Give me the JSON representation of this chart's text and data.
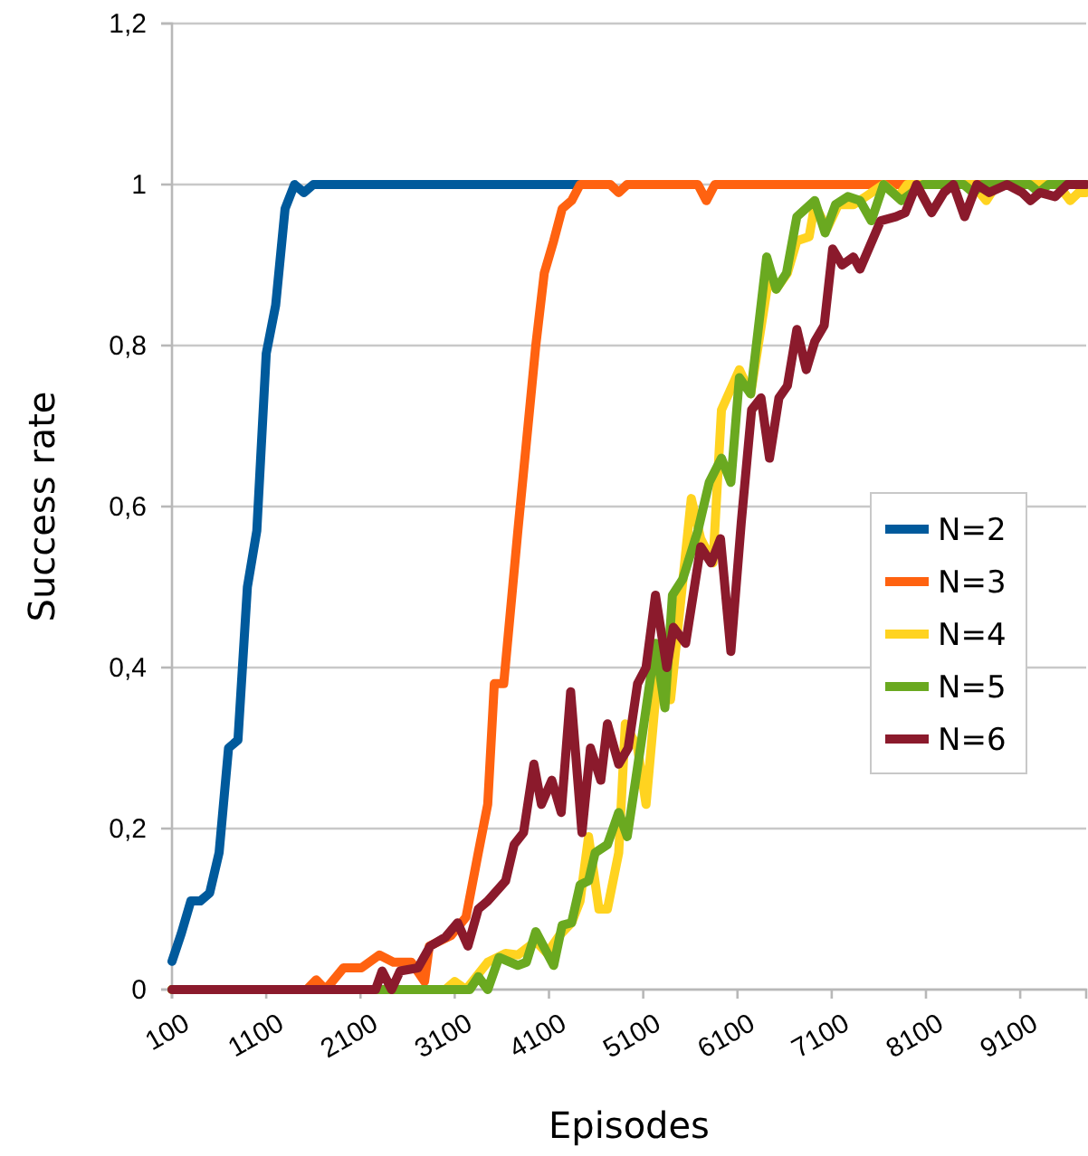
{
  "chart_data": {
    "type": "line",
    "xlabel": "Episodes",
    "ylabel": "Success rate",
    "xlim": [
      100,
      9800
    ],
    "xticks": [
      100,
      1100,
      2100,
      3100,
      4100,
      5100,
      6100,
      7100,
      8100,
      9100
    ],
    "ylim": [
      0,
      1.2
    ],
    "yticks": [
      0,
      {
        "value": 0.2,
        "label": "0,2"
      },
      {
        "value": 0.4,
        "label": "0,4"
      },
      {
        "value": 0.6,
        "label": "0,6"
      },
      {
        "value": 0.8,
        "label": "0,8"
      },
      1,
      {
        "value": 1.2,
        "label": "1,2"
      }
    ],
    "grid": "y",
    "legend": "right",
    "marker": "none",
    "line_style": "solid",
    "series": [
      {
        "name": "N=2",
        "color": "#005a9c",
        "x": [
          100,
          200,
          300,
          400,
          500,
          600,
          700,
          800,
          900,
          1000,
          1100,
          1200,
          1300,
          1400,
          1500,
          1600,
          4430
        ],
        "values": [
          0.035,
          0.07,
          0.11,
          0.11,
          0.12,
          0.17,
          0.3,
          0.31,
          0.5,
          0.57,
          0.79,
          0.85,
          0.97,
          1,
          0.99,
          1,
          1
        ]
      },
      {
        "name": "N=3",
        "color": "#ff6210",
        "x": [
          100,
          1530,
          1630,
          1730,
          1920,
          2110,
          2300,
          2450,
          2640,
          2780,
          2830,
          3060,
          3220,
          3350,
          3450,
          3520,
          3620,
          3770,
          3960,
          4050,
          4150,
          4240,
          4340,
          4430,
          4750,
          4840,
          4930,
          5680,
          5770,
          5860,
          9800
        ],
        "values": [
          0,
          0,
          0.012,
          0,
          0.027,
          0.027,
          0.043,
          0.034,
          0.034,
          0.01,
          0.054,
          0.067,
          0.09,
          0.17,
          0.23,
          0.38,
          0.38,
          0.57,
          0.8,
          0.89,
          0.93,
          0.97,
          0.98,
          1,
          1,
          0.99,
          1,
          1,
          0.98,
          1,
          1
        ]
      },
      {
        "name": "N=4",
        "color": "#ffd320",
        "x": [
          100,
          3000,
          3100,
          3220,
          3450,
          3640,
          3770,
          3960,
          4080,
          4210,
          4340,
          4430,
          4520,
          4630,
          4720,
          4840,
          4910,
          5040,
          5130,
          5260,
          5390,
          5610,
          5710,
          5840,
          5930,
          6120,
          6240,
          6440,
          6510,
          6630,
          6730,
          6860,
          6920,
          7050,
          7170,
          7330,
          7460,
          7650,
          7810,
          7900,
          8600,
          8740,
          8850,
          9500,
          9630,
          9720,
          9800
        ],
        "values": [
          0,
          0,
          0.01,
          0,
          0.034,
          0.045,
          0.043,
          0.06,
          0.045,
          0.067,
          0.083,
          0.11,
          0.19,
          0.1,
          0.1,
          0.17,
          0.33,
          0.3,
          0.23,
          0.4,
          0.36,
          0.61,
          0.56,
          0.53,
          0.72,
          0.77,
          0.74,
          0.89,
          0.87,
          0.89,
          0.93,
          0.935,
          0.975,
          0.945,
          0.975,
          0.975,
          0.985,
          1,
          0.985,
          1,
          1,
          0.98,
          1,
          1,
          0.98,
          0.99,
          0.99
        ]
      },
      {
        "name": "N=5",
        "color": "#6aa920",
        "x": [
          100,
          3260,
          3350,
          3450,
          3570,
          3770,
          3860,
          3960,
          4150,
          4240,
          4340,
          4430,
          4520,
          4590,
          4720,
          4840,
          4930,
          5070,
          5230,
          5330,
          5410,
          5520,
          5680,
          5800,
          5930,
          6030,
          6120,
          6240,
          6410,
          6510,
          6620,
          6730,
          6920,
          7030,
          7140,
          7270,
          7400,
          7520,
          7650,
          7840,
          8070,
          8500,
          8600,
          8700,
          9200,
          9300,
          9400,
          9800
        ],
        "values": [
          0,
          0,
          0.016,
          0,
          0.04,
          0.03,
          0.034,
          0.072,
          0.03,
          0.08,
          0.083,
          0.13,
          0.135,
          0.17,
          0.18,
          0.22,
          0.19,
          0.3,
          0.43,
          0.35,
          0.49,
          0.51,
          0.57,
          0.63,
          0.66,
          0.63,
          0.76,
          0.74,
          0.91,
          0.87,
          0.89,
          0.96,
          0.98,
          0.94,
          0.975,
          0.985,
          0.98,
          0.955,
          1,
          0.98,
          1,
          1,
          0.99,
          1,
          1,
          0.99,
          1,
          1
        ]
      },
      {
        "name": "N=6",
        "color": "#8b1a2c",
        "x": [
          100,
          2260,
          2330,
          2430,
          2520,
          2710,
          2840,
          3000,
          3130,
          3240,
          3350,
          3450,
          3640,
          3730,
          3830,
          3940,
          4020,
          4130,
          4230,
          4330,
          4450,
          4540,
          4650,
          4720,
          4840,
          4940,
          5040,
          5130,
          5230,
          5350,
          5420,
          5550,
          5710,
          5820,
          5920,
          6030,
          6140,
          6250,
          6350,
          6440,
          6540,
          6630,
          6730,
          6830,
          6920,
          7020,
          7110,
          7210,
          7330,
          7400,
          7620,
          7780,
          7880,
          8000,
          8160,
          8290,
          8390,
          8510,
          8640,
          8770,
          8960,
          9120,
          9210,
          9310,
          9470,
          9600,
          9800
        ],
        "values": [
          0,
          0,
          0.023,
          0,
          0.023,
          0.027,
          0.054,
          0.065,
          0.083,
          0.054,
          0.1,
          0.11,
          0.135,
          0.18,
          0.195,
          0.28,
          0.23,
          0.26,
          0.22,
          0.37,
          0.195,
          0.3,
          0.26,
          0.33,
          0.28,
          0.3,
          0.38,
          0.4,
          0.49,
          0.4,
          0.45,
          0.43,
          0.55,
          0.53,
          0.56,
          0.42,
          0.58,
          0.72,
          0.735,
          0.66,
          0.735,
          0.75,
          0.82,
          0.77,
          0.805,
          0.825,
          0.92,
          0.9,
          0.91,
          0.895,
          0.955,
          0.96,
          0.965,
          1,
          0.965,
          0.99,
          1,
          0.96,
          1,
          0.99,
          1,
          0.99,
          0.98,
          0.99,
          0.985,
          1,
          1
        ]
      }
    ]
  }
}
